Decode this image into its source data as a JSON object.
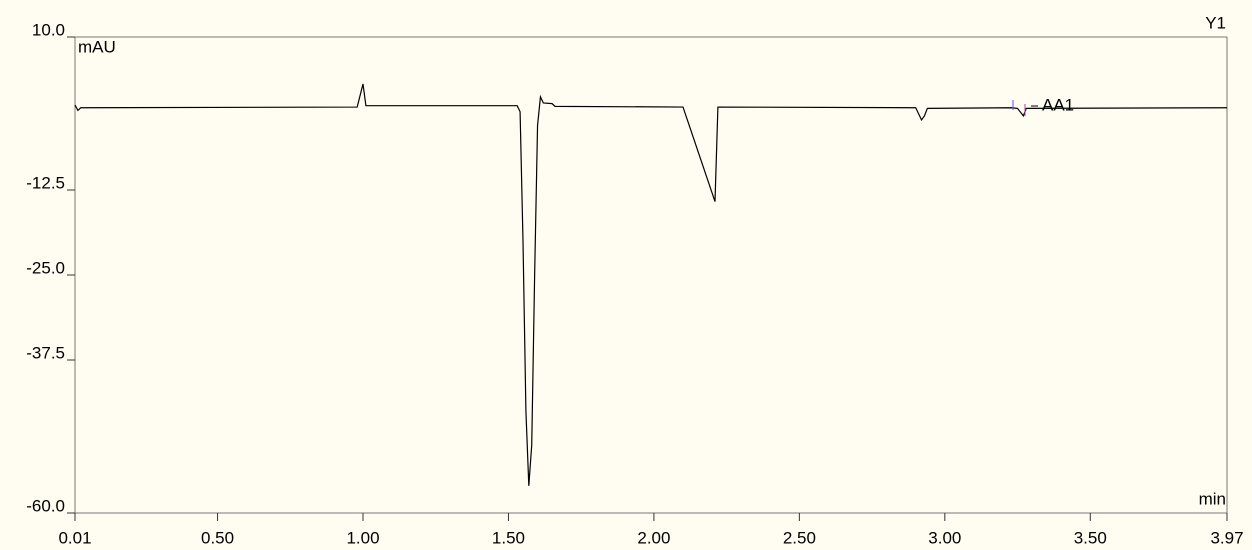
{
  "chart_data": {
    "type": "line",
    "y_axis_unit": "mAU",
    "x_axis_unit": "min",
    "axis_name": "Y1",
    "annotation": "AA1",
    "color": "#000000",
    "x": [
      0.01,
      0.02,
      0.03,
      0.98,
      1.0,
      1.01,
      1.45,
      1.53,
      1.54,
      1.55,
      1.56,
      1.57,
      1.58,
      1.59,
      1.6,
      1.61,
      1.62,
      1.65,
      1.66,
      2.1,
      2.21,
      2.22,
      2.9,
      2.92,
      2.93,
      2.94,
      3.23,
      3.25,
      3.27,
      3.28,
      3.97
    ],
    "values": [
      0,
      -0.8,
      -0.4,
      -0.3,
      3.1,
      -0.1,
      -0.1,
      -0.1,
      -1,
      -20,
      -45,
      -56,
      -50,
      -25,
      -3,
      1.2,
      0.3,
      0.2,
      -0.2,
      -0.3,
      -14.2,
      -0.3,
      -0.4,
      -2.2,
      -1.6,
      -0.5,
      -0.4,
      -0.5,
      -1.6,
      -0.5,
      -0.4
    ],
    "xlim": [
      0.01,
      3.97
    ],
    "ylim": [
      -60,
      10
    ],
    "xticks": [
      {
        "value": 0.01,
        "label": "0.01"
      },
      {
        "value": 0.5,
        "label": "0.50"
      },
      {
        "value": 1,
        "label": "1.00"
      },
      {
        "value": 1.5,
        "label": "1.50"
      },
      {
        "value": 2,
        "label": "2.00"
      },
      {
        "value": 2.5,
        "label": "2.50"
      },
      {
        "value": 3,
        "label": "3.00"
      },
      {
        "value": 3.5,
        "label": "3.50"
      },
      {
        "value": 3.97,
        "label": "3.97"
      }
    ],
    "yticks": [
      {
        "value": 10,
        "label": "10.0"
      },
      {
        "value": -12.5,
        "label": "-12.5"
      },
      {
        "value": -25,
        "label": "-25.0"
      },
      {
        "value": -37.5,
        "label": "-37.5"
      },
      {
        "value": -60,
        "label": "-60.0"
      }
    ]
  }
}
